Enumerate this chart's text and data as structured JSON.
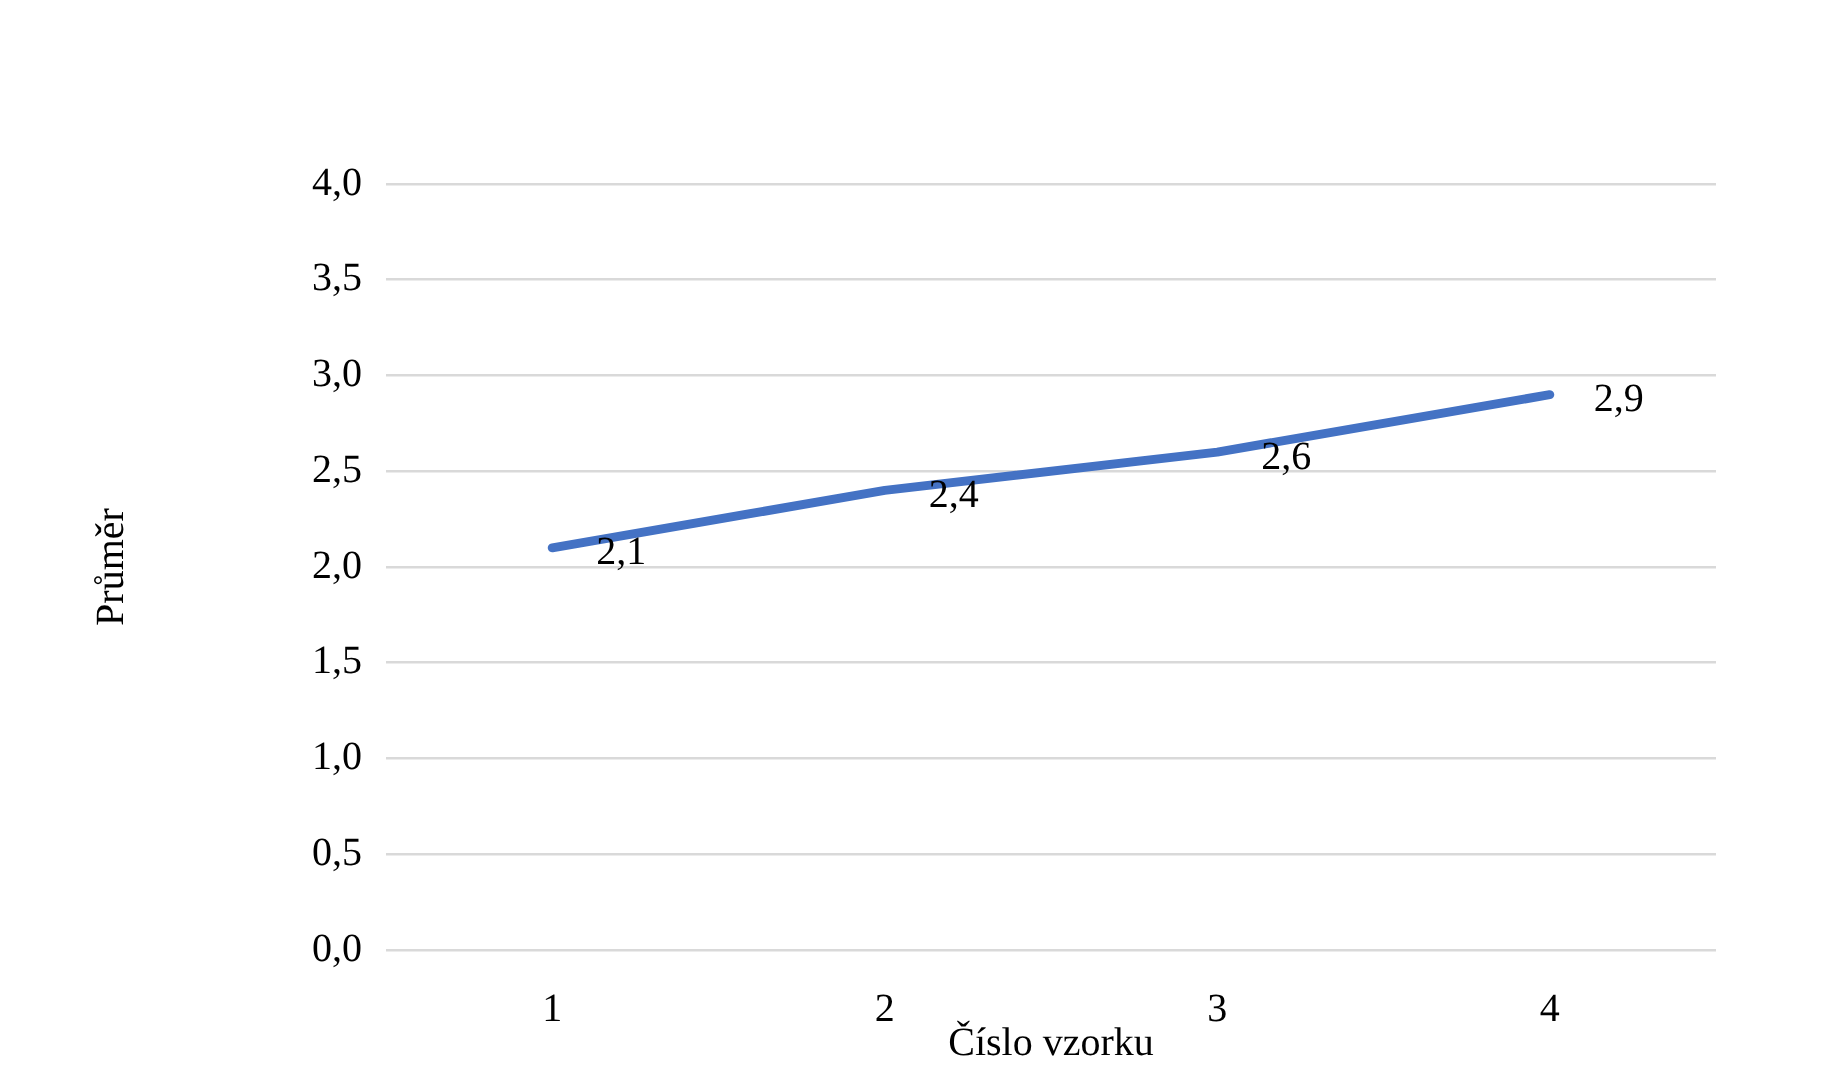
{
  "chart_data": {
    "type": "line",
    "xlabel": "Číslo vzorku",
    "ylabel": "Průměr",
    "categories": [
      "1",
      "2",
      "3",
      "4"
    ],
    "series": [
      {
        "color": "#4472c4",
        "values": [
          2.1,
          2.4,
          2.6,
          2.9
        ],
        "value_labels": [
          "2,1",
          "2,4",
          "2,6",
          "2,9"
        ]
      }
    ],
    "ylim": [
      0,
      4
    ],
    "yticks": [
      {
        "value": 0,
        "label": "0,0"
      },
      {
        "value": 0.5,
        "label": "0,5"
      },
      {
        "value": 1,
        "label": "1,0"
      },
      {
        "value": 1.5,
        "label": "1,5"
      },
      {
        "value": 2,
        "label": "2,0"
      },
      {
        "value": 2.5,
        "label": "2,5"
      },
      {
        "value": 3,
        "label": "3,0"
      },
      {
        "value": 3.5,
        "label": "3,5"
      },
      {
        "value": 4,
        "label": "4,0"
      }
    ],
    "grid": "y",
    "legend": false,
    "marker": "none",
    "line_style": "solid"
  }
}
